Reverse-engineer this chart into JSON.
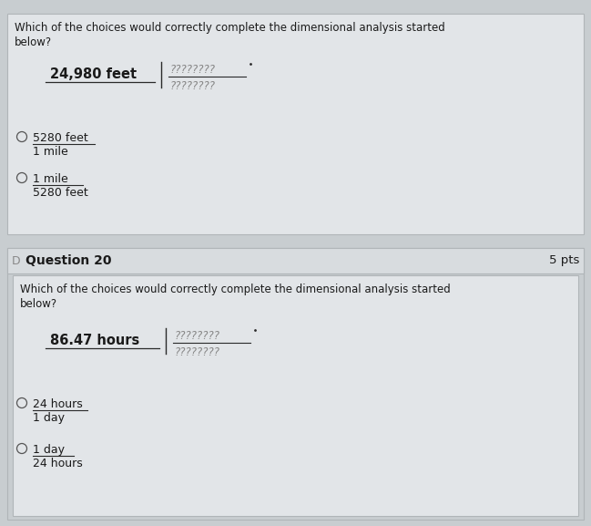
{
  "bg_color": "#c8cdd0",
  "top_box_bg": "#e2e5e8",
  "bottom_outer_bg": "#c8cdd0",
  "bottom_inner_bg": "#e2e5e8",
  "header_bg": "#d8dcdf",
  "top_question_line1": "Which of the choices would correctly complete the dimensional analysis started",
  "top_question_line2": "below?",
  "top_given": "24,980 feet",
  "top_placeholder_num": "????????",
  "top_placeholder_den": "????????",
  "top_choice1_num": "5280 feet",
  "top_choice1_den": "1 mile",
  "top_choice2_num": "1 mile",
  "top_choice2_den": "5280 feet",
  "q20_label": "Question 20",
  "q20_pts": "5 pts",
  "q20_question_line1": "Which of the choices would correctly complete the dimensional analysis started",
  "q20_question_line2": "below?",
  "q20_given": "86.47 hours",
  "q20_placeholder_num": "????????",
  "q20_placeholder_den": "????????",
  "q20_choice1_num": "24 hours",
  "q20_choice1_den": "1 day",
  "q20_choice2_num": "1 day",
  "q20_choice2_den": "24 hours",
  "text_color": "#1a1a1a",
  "line_color": "#2a2a2a",
  "circle_color": "#555555",
  "placeholder_color": "#888888",
  "border_color": "#b0b5b8",
  "header_text_color": "#333333"
}
